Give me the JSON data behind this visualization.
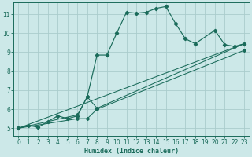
{
  "xlabel": "Humidex (Indice chaleur)",
  "bg_color": "#cce8e8",
  "grid_color": "#aacccc",
  "line_color": "#1a6b5a",
  "xlim": [
    -0.5,
    23.5
  ],
  "ylim": [
    4.6,
    11.6
  ],
  "xticks": [
    0,
    1,
    2,
    3,
    4,
    5,
    6,
    7,
    8,
    9,
    10,
    11,
    12,
    13,
    14,
    15,
    16,
    17,
    18,
    19,
    20,
    21,
    22,
    23
  ],
  "yticks": [
    5,
    6,
    7,
    8,
    9,
    10,
    11
  ],
  "main_series": [
    [
      0,
      5.0
    ],
    [
      1,
      5.15
    ],
    [
      2,
      5.05
    ],
    [
      3,
      5.35
    ],
    [
      4,
      5.65
    ],
    [
      5,
      5.5
    ],
    [
      6,
      5.65
    ],
    [
      7,
      6.65
    ],
    [
      8,
      8.85
    ],
    [
      9,
      8.85
    ],
    [
      10,
      10.0
    ],
    [
      11,
      11.1
    ],
    [
      12,
      11.05
    ],
    [
      13,
      11.1
    ],
    [
      14,
      11.3
    ],
    [
      15,
      11.4
    ],
    [
      16,
      10.5
    ],
    [
      17,
      9.7
    ],
    [
      18,
      9.45
    ],
    [
      20,
      10.15
    ],
    [
      21,
      9.4
    ],
    [
      22,
      9.3
    ],
    [
      23,
      9.45
    ]
  ],
  "line1": [
    [
      0,
      5.0
    ],
    [
      23,
      9.45
    ]
  ],
  "line2": [
    [
      0,
      5.0
    ],
    [
      6,
      5.7
    ],
    [
      7,
      6.65
    ],
    [
      8,
      6.05
    ],
    [
      23,
      9.45
    ]
  ],
  "line3": [
    [
      0,
      5.0
    ],
    [
      6,
      5.5
    ],
    [
      7,
      5.5
    ],
    [
      8,
      6.0
    ],
    [
      23,
      9.1
    ]
  ]
}
